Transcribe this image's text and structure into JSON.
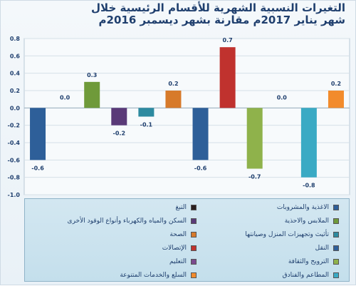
{
  "title": {
    "line1": "التغيرات النسبية الشهرية للأقسام الرئيسية خلال",
    "line2": "شهر يناير 2017م مقارنة بشهر ديسمبر 2016م"
  },
  "chart_data": {
    "type": "bar",
    "title": "التغيرات النسبية الشهرية للأقسام الرئيسية خلال شهر يناير 2017م مقارنة بشهر ديسمبر 2016م",
    "ylim": [
      -1.0,
      0.8
    ],
    "yticks": [
      "0.8",
      "0.6",
      "0.4",
      "0.2",
      "0.0",
      "-0.2",
      "-0.4",
      "-0.6",
      "-0.8",
      "-1.0"
    ],
    "grid": true,
    "legend_position": "bottom",
    "categories": [
      "الاغذية والمشروبات",
      "التبغ",
      "الملابس والاحذية",
      "السكن والمياه والكهرباء وأنواع الوقود الأخرى",
      "تأثيث وتجهيزات المنزل وصيانتها",
      "الصحة",
      "النقل",
      "الإتصالات",
      "الترويح والثقافة",
      "التعليم",
      "المطاعم والفنادق",
      "السلع والخدمات المتنوعة"
    ],
    "values": [
      -0.6,
      0.0,
      0.3,
      -0.2,
      -0.1,
      0.2,
      -0.6,
      0.7,
      -0.7,
      0.0,
      -0.8,
      0.2
    ],
    "labels": [
      "-0.6",
      "0.0",
      "0.3",
      "-0.2",
      "-0.1",
      "0.2",
      "-0.6",
      "0.7",
      "-0.7",
      "0.0",
      "-0.8",
      "0.2"
    ],
    "colors": [
      "#2e5f99",
      "#2a1f1f",
      "#6f9a3a",
      "#5a3a78",
      "#2d8aa0",
      "#d77a2a",
      "#2e5f99",
      "#c0322e",
      "#8fb24b",
      "#7b4a8f",
      "#3aaac4",
      "#f28b2c"
    ]
  },
  "legend": [
    {
      "label": "الاغذية والمشروبات",
      "color": "#2e5f99"
    },
    {
      "label": "التبغ",
      "color": "#2a1f1f"
    },
    {
      "label": "الملابس والاحذية",
      "color": "#6f9a3a"
    },
    {
      "label": "السكن والمياه والكهرباء وأنواع الوقود الأخرى",
      "color": "#5a3a78"
    },
    {
      "label": "تأثيث وتجهيزات المنزل وصيانتها",
      "color": "#2d8aa0"
    },
    {
      "label": "الصحة",
      "color": "#d77a2a"
    },
    {
      "label": "النقل",
      "color": "#2e5f99"
    },
    {
      "label": "الإتصالات",
      "color": "#c0322e"
    },
    {
      "label": "الترويح والثقافة",
      "color": "#8fb24b"
    },
    {
      "label": "التعليم",
      "color": "#7b4a8f"
    },
    {
      "label": "المطاعم والفنادق",
      "color": "#3aaac4"
    },
    {
      "label": "السلع والخدمات المتنوعة",
      "color": "#f28b2c"
    }
  ]
}
